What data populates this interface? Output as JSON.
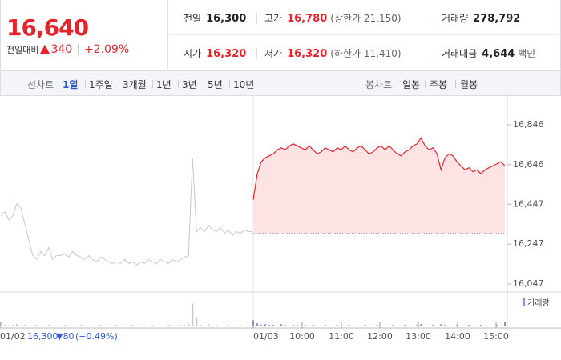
{
  "header": {
    "price": "16,640",
    "change_label": "전일대비",
    "change": "340",
    "change_pct": "+2.09%"
  },
  "info": [
    {
      "label": "전일",
      "value": "16,300"
    },
    {
      "label": "고가",
      "value": "16,780",
      "note": "(상한가 21,150)"
    },
    {
      "label": "거래량",
      "value": "278,792"
    },
    {
      "label": "시가",
      "value": "16,320"
    },
    {
      "label": "저가",
      "value": "16,320",
      "note": "(하한가 11,410)"
    },
    {
      "label": "거래대금",
      "value": "4,644",
      "note": "백만"
    }
  ],
  "tabs": {
    "line_label": "선차트",
    "line_items": [
      "1일",
      "1주일",
      "3개월",
      "1년",
      "3년",
      "5년",
      "10년"
    ],
    "candle_label": "봉차트",
    "candle_items": [
      "일봉",
      "주봉",
      "월봉"
    ]
  },
  "chart_data": {
    "type": "line",
    "ylim": [
      16007,
      16958
    ],
    "yticks": [
      {
        "value": 16846,
        "label": "16,846"
      },
      {
        "value": 16646,
        "label": "16,646"
      },
      {
        "value": 16447,
        "label": "16,447"
      },
      {
        "value": 16247,
        "label": "16,247"
      },
      {
        "value": 16047,
        "label": "16,047"
      }
    ],
    "xticks": [
      "01/02",
      "01/03",
      "10:00",
      "11:00",
      "12:00",
      "13:00",
      "14:00",
      "15:00"
    ],
    "series": [
      {
        "color": "#c8c8c8",
        "values": [
          16390,
          16410,
          16370,
          16390,
          16450,
          16430,
          16350,
          16270,
          16190,
          16170,
          16210,
          16190,
          16230,
          16170,
          16190,
          16190,
          16198,
          16182,
          16210,
          16190,
          16182,
          16170,
          16190,
          16170,
          16158,
          16182,
          16170,
          16158,
          16150,
          16158,
          16150,
          16170,
          16150,
          16158,
          16142,
          16158,
          16150,
          16170,
          16158,
          16150,
          16170,
          16158,
          16150,
          16170,
          16158,
          16170,
          16182,
          16190,
          16678,
          16310,
          16330,
          16310,
          16342,
          16318,
          16310,
          16330,
          16302,
          16318,
          16290,
          16310,
          16302,
          16318,
          16310,
          16310
        ]
      },
      {
        "color": "#e8232a",
        "fill": "#fde3e4",
        "values": [
          16470,
          16600,
          16660,
          16680,
          16690,
          16700,
          16720,
          16730,
          16720,
          16740,
          16750,
          16740,
          16730,
          16720,
          16740,
          16720,
          16700,
          16710,
          16730,
          16720,
          16710,
          16730,
          16720,
          16740,
          16720,
          16710,
          16730,
          16740,
          16720,
          16700,
          16710,
          16730,
          16740,
          16720,
          16740,
          16720,
          16700,
          16690,
          16710,
          16720,
          16740,
          16750,
          16780,
          16740,
          16720,
          16730,
          16700,
          16620,
          16680,
          16700,
          16690,
          16660,
          16640,
          16620,
          16630,
          16610,
          16620,
          16600,
          16620,
          16630,
          16640,
          16650,
          16660,
          16640
        ]
      }
    ],
    "prev_close": {
      "date": "01/02",
      "close": {
        "value": 16300,
        "label": "16,300"
      },
      "change": "▼80",
      "change_pct": "(−0.49%)"
    },
    "volume": {
      "name": "거래량",
      "color": "#9a86d6",
      "prev_color": "#c8c8c8",
      "ylim": [
        0,
        40
      ],
      "prev": [
        6,
        2,
        1,
        2,
        3,
        1,
        2,
        1,
        1,
        2,
        1,
        1,
        2,
        1,
        1,
        1,
        2,
        1,
        1,
        1,
        2,
        1,
        1,
        1,
        1,
        2,
        1,
        1,
        1,
        2,
        1,
        1,
        1,
        2,
        1,
        1,
        1,
        1,
        2,
        1,
        1,
        1,
        2,
        1,
        1,
        2,
        2,
        3,
        30,
        12,
        2,
        1,
        3,
        1,
        2,
        1,
        1,
        2,
        1,
        1,
        2,
        1,
        1,
        2
      ],
      "today": [
        8,
        4,
        2,
        3,
        2,
        2,
        1,
        3,
        2,
        1,
        2,
        2,
        1,
        2,
        1,
        2,
        1,
        1,
        2,
        1,
        1,
        2,
        1,
        1,
        2,
        1,
        1,
        1,
        2,
        1,
        1,
        2,
        1,
        1,
        1,
        2,
        1,
        1,
        2,
        1,
        1,
        2,
        3,
        1,
        1,
        2,
        1,
        3,
        2,
        1,
        1,
        2,
        1,
        1,
        2,
        1,
        1,
        2,
        1,
        1,
        1,
        2,
        1,
        6
      ]
    }
  }
}
